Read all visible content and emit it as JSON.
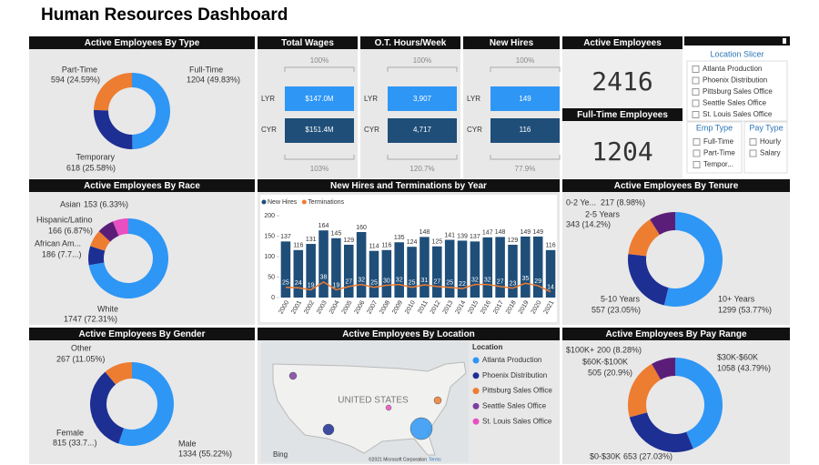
{
  "title": "Human Resources Dashboard",
  "kpi_colors": {
    "lyr": "#2e96f5",
    "cyr": "#1f4e79"
  },
  "kpis": [
    {
      "title": "Total Wages",
      "target_label": "100%",
      "lyr_label": "LYR",
      "lyr_value": "$147.0M",
      "cyr_label": "CYR",
      "cyr_value": "$151.4M",
      "ratio_label": "103%"
    },
    {
      "title": "O.T. Hours/Week",
      "target_label": "100%",
      "lyr_label": "LYR",
      "lyr_value": "3,907",
      "cyr_label": "CYR",
      "cyr_value": "4,717",
      "ratio_label": "120.7%"
    },
    {
      "title": "New Hires",
      "target_label": "100%",
      "lyr_label": "LYR",
      "lyr_value": 149,
      "cyr_label": "CYR",
      "cyr_value": 116,
      "ratio_label": "77.9%"
    }
  ],
  "cards": [
    {
      "title": "Active Employees",
      "value": 2416
    },
    {
      "title": "Full-Time Employees",
      "value": 1204
    }
  ],
  "slicers": [
    {
      "title": "Location Slicer",
      "items": [
        "Atlanta Production",
        "Phoenix Distribution",
        "Pittsburg Sales Office",
        "Seattle Sales Office",
        "St. Louis Sales Office"
      ]
    },
    {
      "title": "Emp Type",
      "items": [
        "Full-Time",
        "Part-Time",
        "Tempor..."
      ]
    },
    {
      "title": "Pay Type",
      "items": [
        "Hourly",
        "Salary"
      ]
    }
  ],
  "chart_data": [
    {
      "type": "donut",
      "title": "Active Employees By Type",
      "categories": [
        "Full-Time",
        "Temporary",
        "Part-Time"
      ],
      "values": [
        1204,
        618,
        594
      ],
      "value_labels": [
        "1204 (49.83%)",
        "618 (25.58%)",
        "594 (24.59%)"
      ],
      "colors": [
        "#2e96f5",
        "#1d2f93",
        "#ed7d31"
      ]
    },
    {
      "type": "donut",
      "title": "Active Employees By Race",
      "categories": [
        "White",
        "African Am...",
        "Hispanic/Latino",
        null,
        "Asian"
      ],
      "values": [
        1747,
        186,
        166,
        164,
        153
      ],
      "value_labels": [
        "1747 (72.31%)",
        "186 (7.7...)",
        "166 (6.87%)",
        null,
        "153 (6.33%)"
      ],
      "colors": [
        "#2e96f5",
        "#1d2f93",
        "#ed7d31",
        "#5b1e78",
        "#e84fc0"
      ]
    },
    {
      "type": "combo",
      "title": "New Hires and Terminations by Year",
      "categories": [
        "2000",
        "2001",
        "2002",
        "2003",
        "2004",
        "2005",
        "2006",
        "2007",
        "2008",
        "2009",
        "2010",
        "2011",
        "2012",
        "2013",
        "2014",
        "2015",
        "2016",
        "2017",
        "2018",
        "2019",
        "2020",
        "2021"
      ],
      "series": [
        {
          "name": "New Hires",
          "color": "#1f4e79",
          "values": [
            137,
            116,
            131,
            164,
            145,
            129,
            160,
            114,
            116,
            135,
            124,
            148,
            125,
            141,
            139,
            137,
            147,
            148,
            129,
            149,
            149,
            116
          ]
        },
        {
          "name": "Terminations",
          "color": "#ed7d31",
          "values": [
            25,
            24,
            19,
            38,
            19,
            27,
            32,
            25,
            30,
            32,
            25,
            31,
            27,
            25,
            22,
            32,
            32,
            27,
            23,
            35,
            29,
            14
          ]
        }
      ],
      "ylim": [
        0,
        200
      ],
      "yticks": [
        0,
        50,
        100,
        150,
        200
      ]
    },
    {
      "type": "donut",
      "title": "Active Employees By Tenure",
      "categories": [
        "10+ Years",
        "5-10 Years",
        "2-5 Years",
        "0-2 Ye..."
      ],
      "values": [
        1299,
        557,
        343,
        217
      ],
      "value_labels": [
        "1299 (53.77%)",
        "557 (23.05%)",
        "343 (14.2%)",
        "217 (8.98%)"
      ],
      "colors": [
        "#2e96f5",
        "#1d2f93",
        "#ed7d31",
        "#5b1e78"
      ]
    },
    {
      "type": "donut",
      "title": "Active Employees By Gender",
      "categories": [
        "Male",
        "Female",
        "Other"
      ],
      "values": [
        1334,
        815,
        267
      ],
      "value_labels": [
        "1334 (55.22%)",
        "815 (33.7...)",
        "267 (11.05%)"
      ],
      "colors": [
        "#2e96f5",
        "#1d2f93",
        "#ed7d31"
      ]
    },
    {
      "type": "map",
      "title": "Active Employees By Location",
      "legend_title": "Location",
      "country_label": "UNITED STATES",
      "provider": "Bing",
      "attribution": "©2021 Microsoft Corporation",
      "terms": "Terms",
      "series": [
        {
          "name": "Atlanta Production",
          "color": "#2e96f5"
        },
        {
          "name": "Phoenix Distribution",
          "color": "#1d2f93"
        },
        {
          "name": "Pittsburg Sales Office",
          "color": "#ed7d31"
        },
        {
          "name": "Seattle Sales Office",
          "color": "#7b3fa0"
        },
        {
          "name": "St. Louis Sales Office",
          "color": "#e84fc0"
        }
      ]
    },
    {
      "type": "donut",
      "title": "Active Employees By Pay Range",
      "categories": [
        "$30K-$60K",
        "$0-$30K",
        "$60K-$100K",
        "$100K+"
      ],
      "values": [
        1058,
        653,
        505,
        200
      ],
      "value_labels": [
        "1058 (43.79%)",
        "653 (27.03%)",
        "505 (20.9%)",
        "200 (8.28%)"
      ],
      "colors": [
        "#2e96f5",
        "#1d2f93",
        "#ed7d31",
        "#5b1e78"
      ]
    }
  ]
}
